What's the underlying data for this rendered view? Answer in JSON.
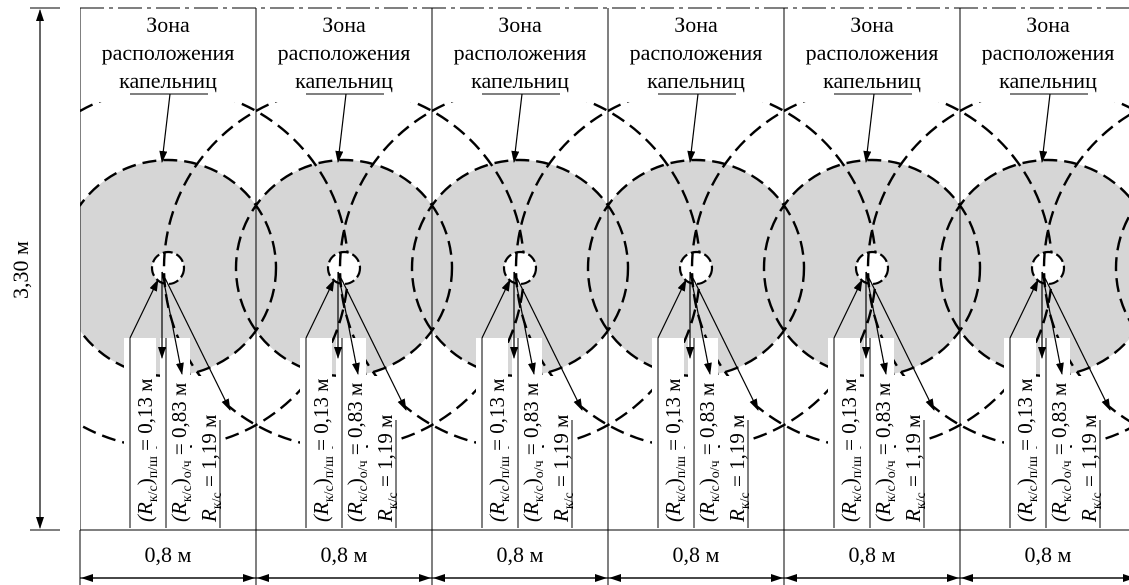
{
  "zone_label": {
    "line1": "Зона",
    "line2": "расположения",
    "line3": "капельниц"
  },
  "height_label": "3,30 м",
  "width_label": "0,8 м",
  "radii": {
    "r1": {
      "sym": "(R",
      "sub1": "к/с",
      "close": ")",
      "sub2": "п/ш",
      "eq": " = 0,13 м"
    },
    "r2": {
      "sym": "(R",
      "sub1": "к/с",
      "close": ")",
      "sub2": "о/ч",
      "eq": " = 0,83 м"
    },
    "r3": {
      "sym": "R",
      "sub1": "к/с",
      "eq": " = 1,19 м"
    }
  },
  "zone_count": 6,
  "colors": {
    "wetted_fill": "#d6d6d6",
    "line": "#000000"
  }
}
